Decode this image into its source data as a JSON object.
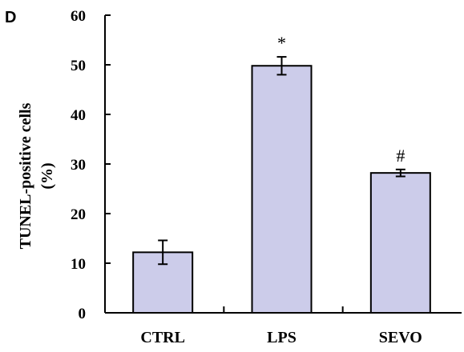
{
  "panel_label": "D",
  "chart_data": {
    "type": "bar",
    "title": "",
    "xlabel": "",
    "ylabel_line1": "TUNEL-positive cells",
    "ylabel_line2": "(%)",
    "categories": [
      "CTRL",
      "LPS",
      "SEVO"
    ],
    "values": [
      12.2,
      49.8,
      28.2
    ],
    "errors": [
      2.4,
      1.8,
      0.7
    ],
    "annotations": [
      "",
      "*",
      "#"
    ],
    "ylim": [
      0,
      60
    ],
    "yticks": [
      "0",
      "10",
      "20",
      "30",
      "40",
      "50",
      "60"
    ],
    "bar_color": "#ccccea",
    "grid": false
  }
}
